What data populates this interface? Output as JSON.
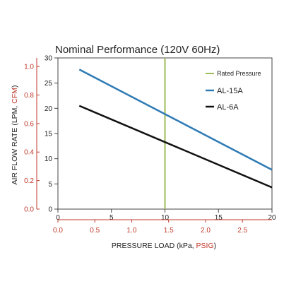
{
  "chart_data": {
    "type": "line",
    "title": "Nominal Performance (120V 60Hz)",
    "xlabel_parts": [
      {
        "text": "PRESSURE LOAD (kPa, ",
        "color": "#222222"
      },
      {
        "text": "PSIG",
        "color": "#c0392b"
      },
      {
        "text": ")",
        "color": "#222222"
      }
    ],
    "ylabel_parts": [
      {
        "text": "AIR FLOW RATE  (LPM, ",
        "color": "#222222"
      },
      {
        "text": "CFM",
        "color": "#c0392b"
      },
      {
        "text": ")",
        "color": "#222222"
      }
    ],
    "x_primary": {
      "min": 0,
      "max": 20,
      "ticks": [
        "0",
        "5",
        "10",
        "15",
        "20"
      ],
      "unit": "kPa"
    },
    "x_secondary": {
      "min": 0,
      "max": 2.9,
      "ticks": [
        "0.0",
        "0.5",
        "1.0",
        "1.5",
        "2.0",
        "2.5"
      ],
      "unit": "PSIG"
    },
    "y_primary": {
      "min": 0,
      "max": 30,
      "ticks": [
        "0",
        "5",
        "10",
        "15",
        "20",
        "25",
        "30"
      ],
      "unit": "LPM"
    },
    "y_secondary": {
      "min": 0,
      "max": 1.06,
      "ticks": [
        "0.0",
        "0.2",
        "0.4",
        "0.6",
        "0.8",
        "1.0"
      ],
      "unit": "CFM"
    },
    "rated_pressure": {
      "name": "Rated Pressure",
      "x": 10,
      "color": "#9dbb57"
    },
    "series": [
      {
        "name": "AL-15A",
        "color": "#2f7bb5",
        "x": [
          2,
          20
        ],
        "y": [
          27.7,
          7.8
        ]
      },
      {
        "name": "AL-6A",
        "color": "#111111",
        "x": [
          2,
          20
        ],
        "y": [
          20.5,
          4.3
        ]
      }
    ],
    "grid": false,
    "legend_position": "top-right"
  }
}
